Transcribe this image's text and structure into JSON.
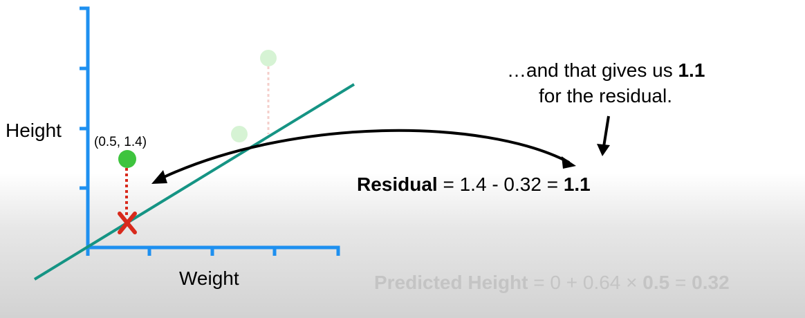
{
  "axes": {
    "y_label": "Height",
    "x_label": "Weight"
  },
  "point": {
    "label": "(0.5, 1.4)",
    "x": 0.5,
    "y": 1.4
  },
  "fit_line": {
    "intercept": 0,
    "slope": 0.64
  },
  "callout": {
    "line1_prefix": "…and that gives us ",
    "line1_value": "1.1",
    "line2": "for the residual."
  },
  "residual_equation": {
    "label": "Residual",
    "expression": " = 1.4 - 0.32 = ",
    "result": "1.1"
  },
  "predicted_equation": {
    "label": "Predicted Height",
    "expression": " = 0 + 0.64 × ",
    "weight": "0.5",
    "equals": " = ",
    "result": "0.32"
  },
  "colors": {
    "axis": "#1e90f0",
    "fit_line": "#159484",
    "point": "#3ec43e",
    "faded_point": "#d6f3d4",
    "residual_dotted": "#d82a1c",
    "faded_residual": "#f4cfcb",
    "predicted_marker": "#d82a1c",
    "arrow": "#000000"
  }
}
